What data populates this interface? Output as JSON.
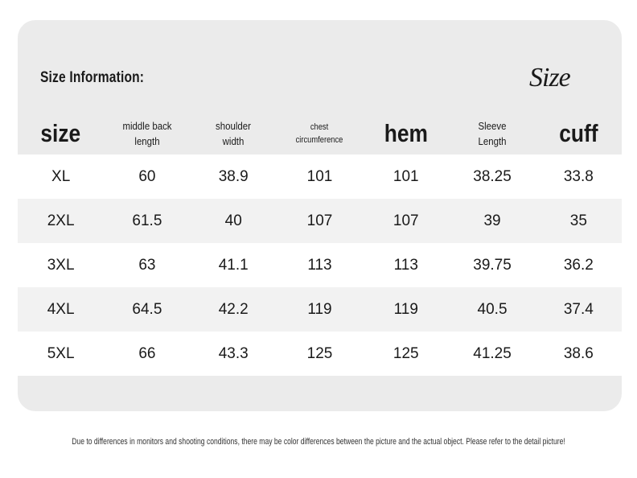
{
  "header": {
    "title": "Size Information:",
    "logo": "Size"
  },
  "table": {
    "columns": [
      "size",
      "middle back length",
      "shoulder width",
      "chest circumference",
      "hem",
      "Sleeve Length",
      "cuff"
    ],
    "rows": [
      [
        "XL",
        60,
        38.9,
        101,
        101,
        38.25,
        33.8
      ],
      [
        "2XL",
        61.5,
        40,
        107,
        107,
        39,
        35
      ],
      [
        "3XL",
        63,
        41.1,
        113,
        113,
        39.75,
        36.2
      ],
      [
        "4XL",
        64.5,
        42.2,
        119,
        119,
        40.5,
        37.4
      ],
      [
        "5XL",
        66,
        43.3,
        125,
        125,
        41.25,
        38.6
      ]
    ]
  },
  "footer": {
    "note": "Due to differences in monitors and shooting conditions, there may be color differences between the picture and the actual object. Please refer to the detail picture!"
  }
}
